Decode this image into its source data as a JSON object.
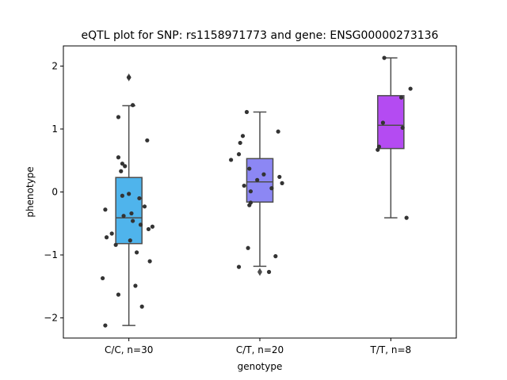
{
  "chart_data": {
    "type": "box",
    "title": "eQTL plot for SNP: rs1158971773 and gene: ENSG00000273136",
    "xlabel": "genotype",
    "ylabel": "phenotype",
    "ylim": [
      -2.32,
      2.32
    ],
    "yticks": [
      -2,
      -1,
      0,
      1,
      2
    ],
    "ytick_labels": [
      "−2",
      "−1",
      "0",
      "1",
      "2"
    ],
    "categories": [
      "C/C, n=30",
      "C/T, n=20",
      "T/T, n=8"
    ],
    "colors": [
      "#4fb4ec",
      "#8c87f4",
      "#b44bf2"
    ],
    "boxes": [
      {
        "q1": -0.82,
        "median": -0.41,
        "q3": 0.23,
        "whisker_low": -2.12,
        "whisker_high": 1.37,
        "outliers": [
          1.82
        ]
      },
      {
        "q1": -0.16,
        "median": 0.16,
        "q3": 0.53,
        "whisker_low": -1.18,
        "whisker_high": 1.27,
        "outliers": [
          -1.27
        ]
      },
      {
        "q1": 0.69,
        "median": 1.06,
        "q3": 1.53,
        "whisker_low": -0.41,
        "whisker_high": 2.13,
        "outliers": []
      }
    ],
    "points": [
      [
        [
          0.03,
          1.38
        ],
        [
          -0.08,
          1.19
        ],
        [
          0.14,
          0.82
        ],
        [
          -0.08,
          0.55
        ],
        [
          -0.05,
          0.45
        ],
        [
          -0.03,
          0.41
        ],
        [
          -0.06,
          0.33
        ],
        [
          -0.05,
          -0.06
        ],
        [
          0.0,
          -0.03
        ],
        [
          0.08,
          -0.1
        ],
        [
          -0.18,
          -0.28
        ],
        [
          0.12,
          -0.23
        ],
        [
          0.02,
          -0.34
        ],
        [
          -0.04,
          -0.38
        ],
        [
          0.03,
          -0.46
        ],
        [
          0.09,
          -0.52
        ],
        [
          0.18,
          -0.55
        ],
        [
          0.15,
          -0.59
        ],
        [
          -0.13,
          -0.66
        ],
        [
          -0.17,
          -0.72
        ],
        [
          0.01,
          -0.77
        ],
        [
          -0.1,
          -0.84
        ],
        [
          0.06,
          -0.96
        ],
        [
          0.16,
          -1.1
        ],
        [
          -0.2,
          -1.37
        ],
        [
          0.05,
          -1.49
        ],
        [
          -0.08,
          -1.63
        ],
        [
          0.1,
          -1.82
        ],
        [
          -0.18,
          -2.12
        ],
        [
          0.0,
          1.82
        ]
      ],
      [
        [
          -0.1,
          1.27
        ],
        [
          0.14,
          0.96
        ],
        [
          -0.13,
          0.89
        ],
        [
          -0.15,
          0.78
        ],
        [
          -0.16,
          0.6
        ],
        [
          -0.22,
          0.51
        ],
        [
          -0.08,
          0.37
        ],
        [
          0.03,
          0.28
        ],
        [
          0.15,
          0.24
        ],
        [
          -0.02,
          0.19
        ],
        [
          -0.12,
          0.1
        ],
        [
          0.17,
          0.14
        ],
        [
          0.09,
          0.06
        ],
        [
          -0.07,
          0.01
        ],
        [
          -0.07,
          -0.17
        ],
        [
          -0.08,
          -0.21
        ],
        [
          -0.09,
          -0.89
        ],
        [
          0.12,
          -1.02
        ],
        [
          -0.16,
          -1.19
        ],
        [
          0.07,
          -1.27
        ]
      ],
      [
        [
          -0.05,
          2.13
        ],
        [
          0.15,
          1.64
        ],
        [
          0.08,
          1.5
        ],
        [
          -0.06,
          1.1
        ],
        [
          0.09,
          1.02
        ],
        [
          -0.09,
          0.72
        ],
        [
          -0.1,
          0.67
        ],
        [
          0.12,
          -0.41
        ]
      ]
    ]
  }
}
